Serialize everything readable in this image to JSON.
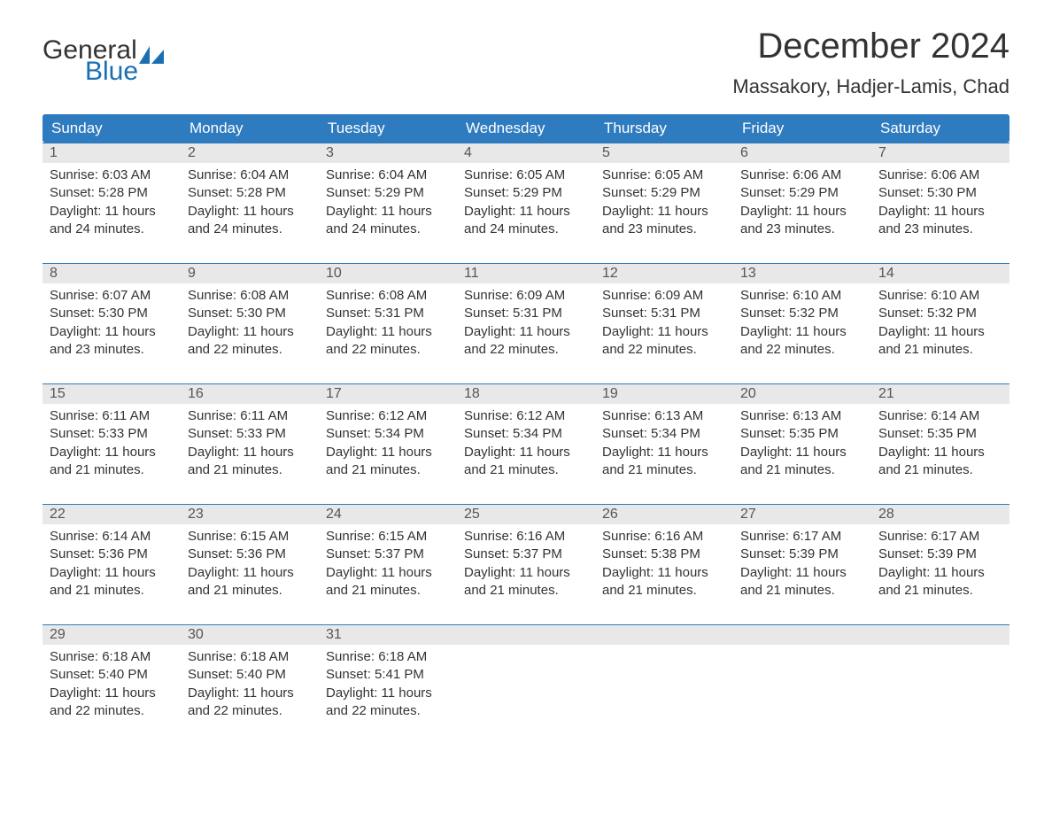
{
  "logo": {
    "text1": "General",
    "text2": "Blue",
    "color1": "#333333",
    "color2": "#1a6fb3"
  },
  "title": "December 2024",
  "location": "Massakory, Hadjer-Lamis, Chad",
  "colors": {
    "header_bg": "#2f7bbf",
    "header_text": "#ffffff",
    "daynum_bg": "#e8e8e8",
    "border": "#2f7bbf",
    "text": "#333333",
    "body_bg": "#ffffff"
  },
  "fonts": {
    "title_size_pt": 30,
    "location_size_pt": 16,
    "header_size_pt": 13,
    "body_size_pt": 11
  },
  "day_names": [
    "Sunday",
    "Monday",
    "Tuesday",
    "Wednesday",
    "Thursday",
    "Friday",
    "Saturday"
  ],
  "weeks": [
    [
      {
        "n": "1",
        "sunrise": "Sunrise: 6:03 AM",
        "sunset": "Sunset: 5:28 PM",
        "daylight": "Daylight: 11 hours and 24 minutes."
      },
      {
        "n": "2",
        "sunrise": "Sunrise: 6:04 AM",
        "sunset": "Sunset: 5:28 PM",
        "daylight": "Daylight: 11 hours and 24 minutes."
      },
      {
        "n": "3",
        "sunrise": "Sunrise: 6:04 AM",
        "sunset": "Sunset: 5:29 PM",
        "daylight": "Daylight: 11 hours and 24 minutes."
      },
      {
        "n": "4",
        "sunrise": "Sunrise: 6:05 AM",
        "sunset": "Sunset: 5:29 PM",
        "daylight": "Daylight: 11 hours and 24 minutes."
      },
      {
        "n": "5",
        "sunrise": "Sunrise: 6:05 AM",
        "sunset": "Sunset: 5:29 PM",
        "daylight": "Daylight: 11 hours and 23 minutes."
      },
      {
        "n": "6",
        "sunrise": "Sunrise: 6:06 AM",
        "sunset": "Sunset: 5:29 PM",
        "daylight": "Daylight: 11 hours and 23 minutes."
      },
      {
        "n": "7",
        "sunrise": "Sunrise: 6:06 AM",
        "sunset": "Sunset: 5:30 PM",
        "daylight": "Daylight: 11 hours and 23 minutes."
      }
    ],
    [
      {
        "n": "8",
        "sunrise": "Sunrise: 6:07 AM",
        "sunset": "Sunset: 5:30 PM",
        "daylight": "Daylight: 11 hours and 23 minutes."
      },
      {
        "n": "9",
        "sunrise": "Sunrise: 6:08 AM",
        "sunset": "Sunset: 5:30 PM",
        "daylight": "Daylight: 11 hours and 22 minutes."
      },
      {
        "n": "10",
        "sunrise": "Sunrise: 6:08 AM",
        "sunset": "Sunset: 5:31 PM",
        "daylight": "Daylight: 11 hours and 22 minutes."
      },
      {
        "n": "11",
        "sunrise": "Sunrise: 6:09 AM",
        "sunset": "Sunset: 5:31 PM",
        "daylight": "Daylight: 11 hours and 22 minutes."
      },
      {
        "n": "12",
        "sunrise": "Sunrise: 6:09 AM",
        "sunset": "Sunset: 5:31 PM",
        "daylight": "Daylight: 11 hours and 22 minutes."
      },
      {
        "n": "13",
        "sunrise": "Sunrise: 6:10 AM",
        "sunset": "Sunset: 5:32 PM",
        "daylight": "Daylight: 11 hours and 22 minutes."
      },
      {
        "n": "14",
        "sunrise": "Sunrise: 6:10 AM",
        "sunset": "Sunset: 5:32 PM",
        "daylight": "Daylight: 11 hours and 21 minutes."
      }
    ],
    [
      {
        "n": "15",
        "sunrise": "Sunrise: 6:11 AM",
        "sunset": "Sunset: 5:33 PM",
        "daylight": "Daylight: 11 hours and 21 minutes."
      },
      {
        "n": "16",
        "sunrise": "Sunrise: 6:11 AM",
        "sunset": "Sunset: 5:33 PM",
        "daylight": "Daylight: 11 hours and 21 minutes."
      },
      {
        "n": "17",
        "sunrise": "Sunrise: 6:12 AM",
        "sunset": "Sunset: 5:34 PM",
        "daylight": "Daylight: 11 hours and 21 minutes."
      },
      {
        "n": "18",
        "sunrise": "Sunrise: 6:12 AM",
        "sunset": "Sunset: 5:34 PM",
        "daylight": "Daylight: 11 hours and 21 minutes."
      },
      {
        "n": "19",
        "sunrise": "Sunrise: 6:13 AM",
        "sunset": "Sunset: 5:34 PM",
        "daylight": "Daylight: 11 hours and 21 minutes."
      },
      {
        "n": "20",
        "sunrise": "Sunrise: 6:13 AM",
        "sunset": "Sunset: 5:35 PM",
        "daylight": "Daylight: 11 hours and 21 minutes."
      },
      {
        "n": "21",
        "sunrise": "Sunrise: 6:14 AM",
        "sunset": "Sunset: 5:35 PM",
        "daylight": "Daylight: 11 hours and 21 minutes."
      }
    ],
    [
      {
        "n": "22",
        "sunrise": "Sunrise: 6:14 AM",
        "sunset": "Sunset: 5:36 PM",
        "daylight": "Daylight: 11 hours and 21 minutes."
      },
      {
        "n": "23",
        "sunrise": "Sunrise: 6:15 AM",
        "sunset": "Sunset: 5:36 PM",
        "daylight": "Daylight: 11 hours and 21 minutes."
      },
      {
        "n": "24",
        "sunrise": "Sunrise: 6:15 AM",
        "sunset": "Sunset: 5:37 PM",
        "daylight": "Daylight: 11 hours and 21 minutes."
      },
      {
        "n": "25",
        "sunrise": "Sunrise: 6:16 AM",
        "sunset": "Sunset: 5:37 PM",
        "daylight": "Daylight: 11 hours and 21 minutes."
      },
      {
        "n": "26",
        "sunrise": "Sunrise: 6:16 AM",
        "sunset": "Sunset: 5:38 PM",
        "daylight": "Daylight: 11 hours and 21 minutes."
      },
      {
        "n": "27",
        "sunrise": "Sunrise: 6:17 AM",
        "sunset": "Sunset: 5:39 PM",
        "daylight": "Daylight: 11 hours and 21 minutes."
      },
      {
        "n": "28",
        "sunrise": "Sunrise: 6:17 AM",
        "sunset": "Sunset: 5:39 PM",
        "daylight": "Daylight: 11 hours and 21 minutes."
      }
    ],
    [
      {
        "n": "29",
        "sunrise": "Sunrise: 6:18 AM",
        "sunset": "Sunset: 5:40 PM",
        "daylight": "Daylight: 11 hours and 22 minutes."
      },
      {
        "n": "30",
        "sunrise": "Sunrise: 6:18 AM",
        "sunset": "Sunset: 5:40 PM",
        "daylight": "Daylight: 11 hours and 22 minutes."
      },
      {
        "n": "31",
        "sunrise": "Sunrise: 6:18 AM",
        "sunset": "Sunset: 5:41 PM",
        "daylight": "Daylight: 11 hours and 22 minutes."
      },
      {
        "n": "",
        "sunrise": "",
        "sunset": "",
        "daylight": ""
      },
      {
        "n": "",
        "sunrise": "",
        "sunset": "",
        "daylight": ""
      },
      {
        "n": "",
        "sunrise": "",
        "sunset": "",
        "daylight": ""
      },
      {
        "n": "",
        "sunrise": "",
        "sunset": "",
        "daylight": ""
      }
    ]
  ]
}
